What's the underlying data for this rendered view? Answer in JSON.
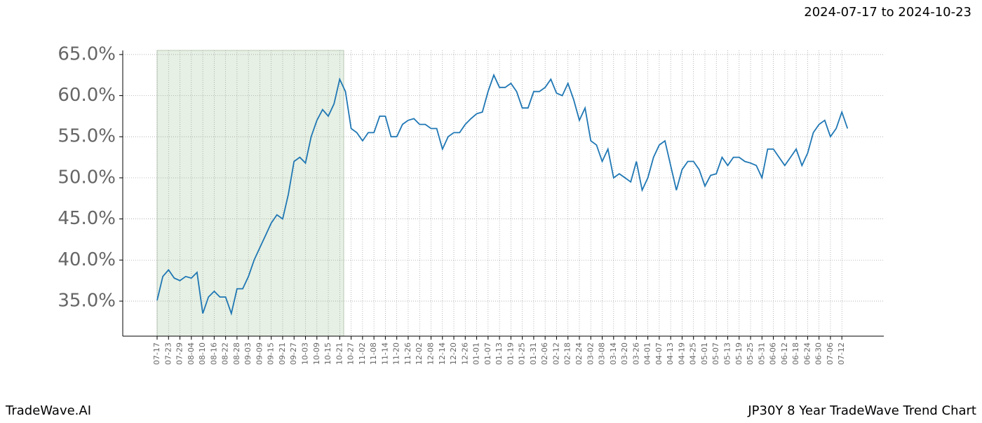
{
  "chart_data": {
    "type": "line",
    "title": "JP30Y 8 Year TradeWave Trend Chart",
    "subtitle": "2024-07-17 to 2024-10-23",
    "brand": "TradeWave.AI",
    "categories": [
      "07-17",
      null,
      "07-23",
      null,
      "07-29",
      null,
      "08-04",
      null,
      "08-10",
      null,
      "08-16",
      null,
      "08-22",
      null,
      "08-28",
      null,
      "09-03",
      null,
      "09-09",
      null,
      "09-15",
      null,
      "09-21",
      null,
      "09-27",
      null,
      "10-03",
      null,
      "10-09",
      null,
      "10-15",
      null,
      "10-21",
      null,
      "10-27",
      null,
      "11-02",
      null,
      "11-08",
      null,
      "11-14",
      null,
      "11-20",
      null,
      "11-26",
      null,
      "12-02",
      null,
      "12-08",
      null,
      "12-14",
      null,
      "12-20",
      null,
      "12-26",
      null,
      "01-01",
      null,
      "01-07",
      null,
      "01-13",
      null,
      "01-19",
      null,
      "01-25",
      null,
      "01-31",
      null,
      "02-06",
      null,
      "02-12",
      null,
      "02-18",
      null,
      "02-24",
      null,
      "03-02",
      null,
      "03-08",
      null,
      "03-14",
      null,
      "03-20",
      null,
      "03-26",
      null,
      "04-01",
      null,
      "04-07",
      null,
      "04-13",
      null,
      "04-19",
      null,
      "04-25",
      null,
      "05-01",
      null,
      "05-07",
      null,
      "05-13",
      null,
      "05-19",
      null,
      "05-25",
      null,
      "05-31",
      null,
      "06-06",
      null,
      "06-12",
      null,
      "06-18",
      null,
      "06-24",
      null,
      "06-30",
      null,
      "07-06",
      null,
      "07-12",
      null
    ],
    "series": [
      {
        "name": "JP30Y",
        "color": "#1f77b4",
        "values": [
          35.1,
          38,
          38.8,
          37.8,
          37.5,
          38,
          37.8,
          38.5,
          33.5,
          35.5,
          36.2,
          35.5,
          35.5,
          33.5,
          36.5,
          36.5,
          38,
          40,
          41.5,
          43,
          44.5,
          45.5,
          45,
          48,
          52,
          52.5,
          51.8,
          55,
          57,
          58.3,
          57.5,
          59,
          62,
          60.5,
          56,
          55.5,
          54.5,
          55.5,
          55.5,
          57.5,
          57.5,
          55,
          55,
          56.5,
          57,
          57.2,
          56.5,
          56.5,
          56,
          56,
          53.5,
          55,
          55.5,
          55.5,
          56.5,
          57.2,
          57.8,
          58,
          60.5,
          62.5,
          61,
          61,
          61.5,
          60.5,
          58.5,
          58.5,
          60.5,
          60.5,
          61,
          62,
          60.3,
          60,
          61.5,
          59.5,
          57,
          58.5,
          54.5,
          54,
          52,
          53.5,
          50,
          50.5,
          50,
          49.5,
          52,
          48.5,
          50,
          52.5,
          54,
          54.5,
          51.5,
          48.5,
          51,
          52,
          52,
          51,
          49,
          50.3,
          50.5,
          52.5,
          51.5,
          52.5,
          52.5,
          52,
          51.8,
          51.5,
          50,
          53.5,
          53.5,
          52.5,
          51.5,
          52.5,
          53.5,
          51.5,
          53,
          55.5,
          56.5,
          57,
          55,
          56,
          58,
          56
        ]
      }
    ],
    "ylim": [
      30.74,
      65.5
    ],
    "yticks": [
      {
        "value": 35,
        "label": "35.0%"
      },
      {
        "value": 40,
        "label": "40.0%"
      },
      {
        "value": 45,
        "label": "45.0%"
      },
      {
        "value": 50,
        "label": "50.0%"
      },
      {
        "value": 55,
        "label": "55.0%"
      },
      {
        "value": 60,
        "label": "60.0%"
      },
      {
        "value": 65,
        "label": "65.0%"
      }
    ],
    "highlight_range": [
      0,
      32.7
    ],
    "highlight_color": "#e6f0e4",
    "grid": true
  }
}
